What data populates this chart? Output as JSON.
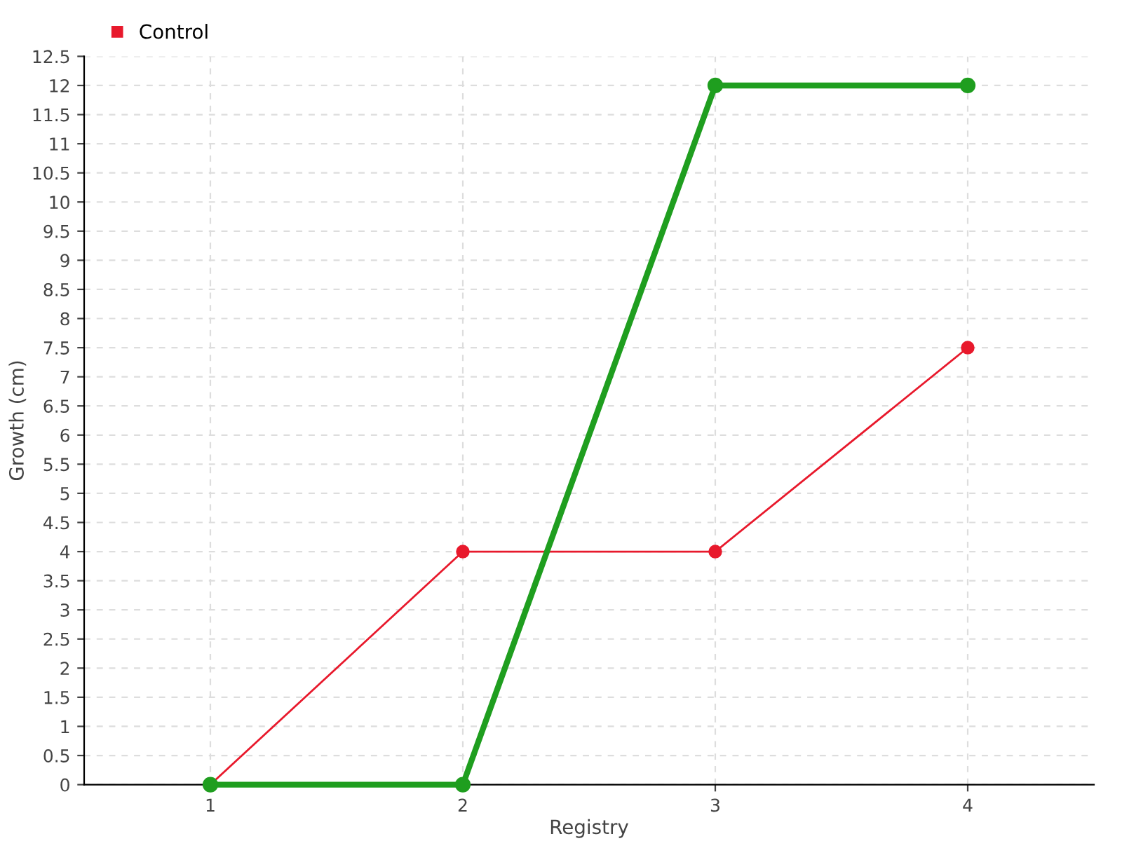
{
  "chart_data": {
    "type": "line",
    "xlabel": "Registry",
    "ylabel": "Growth (cm)",
    "x": [
      1,
      2,
      3,
      4
    ],
    "series": [
      {
        "color": "#1f9e1f",
        "values": [
          0,
          0,
          12,
          12
        ]
      },
      {
        "name": "Control",
        "color": "#e8192c",
        "values": [
          0,
          4,
          4,
          7.5
        ]
      }
    ],
    "xlim": [
      0.5,
      4.5
    ],
    "xticks": [
      1,
      2,
      3,
      4
    ],
    "ylim": [
      0,
      12.5
    ],
    "yticks": [
      0,
      0.5,
      1,
      1.5,
      2,
      2.5,
      3,
      3.5,
      4,
      4.5,
      5,
      5.5,
      6,
      6.5,
      7,
      7.5,
      8,
      8.5,
      9,
      9.5,
      10,
      10.5,
      11,
      11.5,
      12,
      12.5
    ],
    "grid": true,
    "legend": "top left",
    "marker": "circle"
  }
}
